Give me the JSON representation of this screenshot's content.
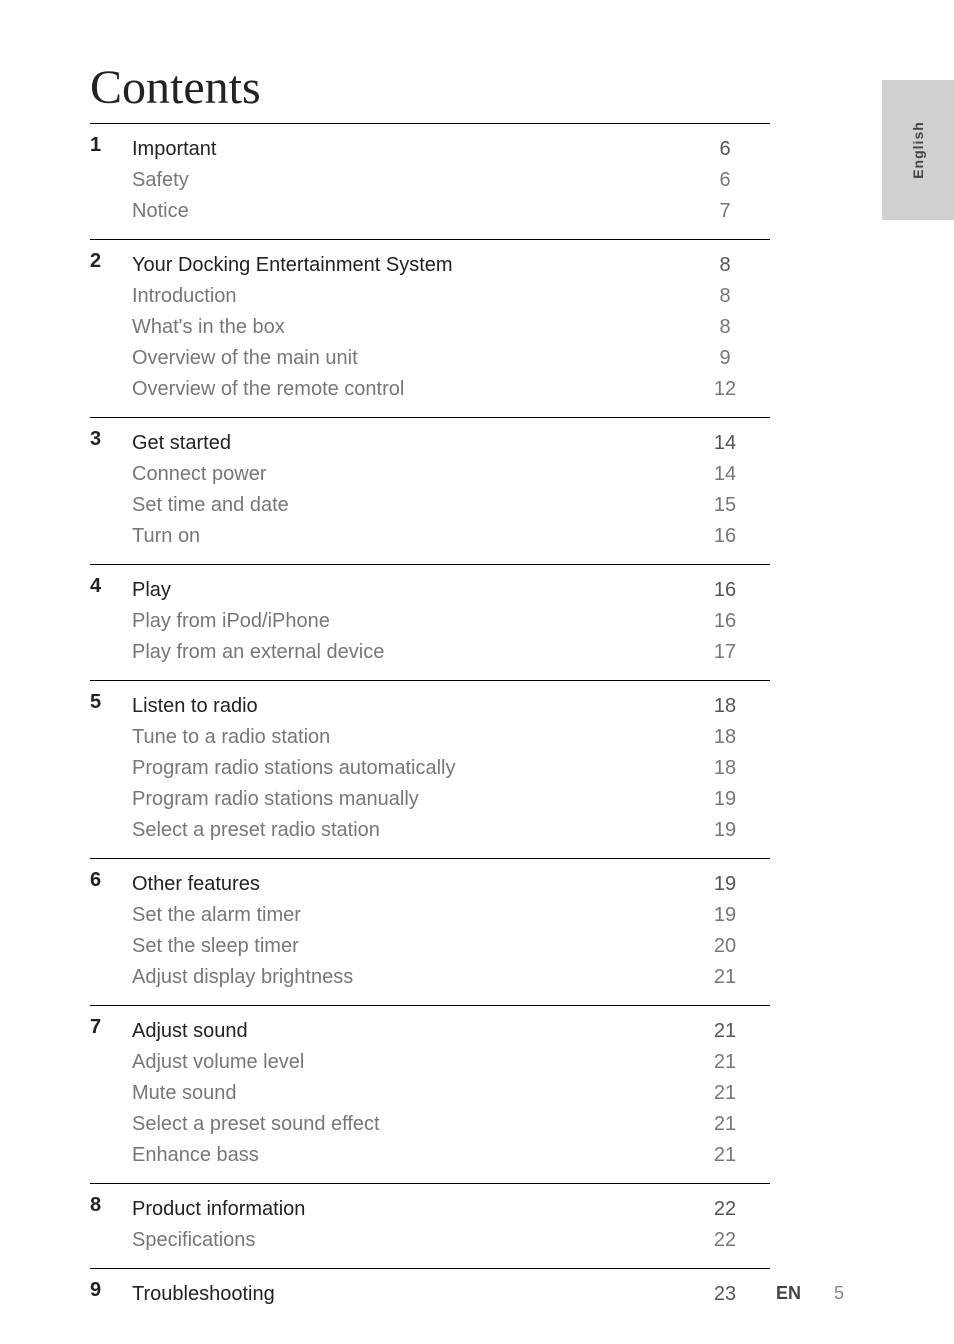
{
  "title": "Contents",
  "language_tab": "English",
  "footer": {
    "lang": "EN",
    "page": "5"
  },
  "sections": [
    {
      "num": "1",
      "heading": {
        "label": "Important",
        "page": "6"
      },
      "subs": [
        {
          "label": "Safety",
          "page": "6"
        },
        {
          "label": "Notice",
          "page": "7"
        }
      ]
    },
    {
      "num": "2",
      "heading": {
        "label": "Your Docking Entertainment System",
        "page": "8"
      },
      "subs": [
        {
          "label": "Introduction",
          "page": "8"
        },
        {
          "label": "What's in the box",
          "page": "8"
        },
        {
          "label": "Overview of the main unit",
          "page": "9"
        },
        {
          "label": "Overview of the remote control",
          "page": "12"
        }
      ]
    },
    {
      "num": "3",
      "heading": {
        "label": "Get started",
        "page": "14"
      },
      "subs": [
        {
          "label": "Connect power",
          "page": "14"
        },
        {
          "label": "Set time and date",
          "page": "15"
        },
        {
          "label": "Turn on",
          "page": "16"
        }
      ]
    },
    {
      "num": "4",
      "heading": {
        "label": "Play",
        "page": "16"
      },
      "subs": [
        {
          "label": "Play from iPod/iPhone",
          "page": "16"
        },
        {
          "label": "Play from an external device",
          "page": "17"
        }
      ]
    },
    {
      "num": "5",
      "heading": {
        "label": "Listen to radio",
        "page": "18"
      },
      "subs": [
        {
          "label": "Tune to a radio station",
          "page": "18"
        },
        {
          "label": "Program radio stations automatically",
          "page": "18"
        },
        {
          "label": "Program radio stations manually",
          "page": "19"
        },
        {
          "label": "Select a preset radio station",
          "page": "19"
        }
      ]
    },
    {
      "num": "6",
      "heading": {
        "label": "Other features",
        "page": "19"
      },
      "subs": [
        {
          "label": "Set the alarm timer",
          "page": "19"
        },
        {
          "label": "Set the sleep timer",
          "page": "20"
        },
        {
          "label": "Adjust display brightness",
          "page": "21"
        }
      ]
    },
    {
      "num": "7",
      "heading": {
        "label": "Adjust sound",
        "page": "21"
      },
      "subs": [
        {
          "label": "Adjust volume level",
          "page": "21"
        },
        {
          "label": "Mute sound",
          "page": "21"
        },
        {
          "label": "Select a preset sound effect",
          "page": "21"
        },
        {
          "label": "Enhance bass",
          "page": "21"
        }
      ]
    },
    {
      "num": "8",
      "heading": {
        "label": "Product information",
        "page": "22"
      },
      "subs": [
        {
          "label": "Specifications",
          "page": "22"
        }
      ]
    },
    {
      "num": "9",
      "heading": {
        "label": "Troubleshooting",
        "page": "23"
      },
      "subs": []
    }
  ]
}
